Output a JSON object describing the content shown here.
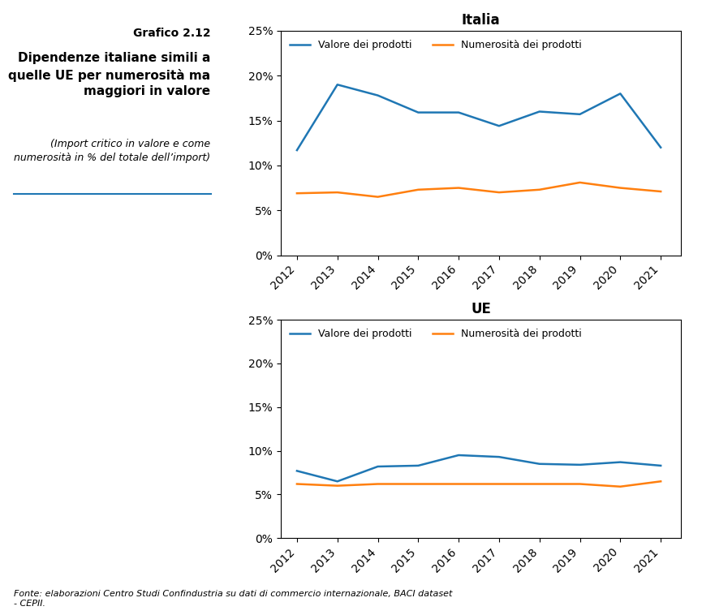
{
  "title": "Grafico 2.12",
  "subtitle": "Dipendenze italiane simili a\nquelle UE per numerosità ma\nmaggiori in valore",
  "annotations": [
    "(Import critico in valore e come\nnumerosità in % del totale dell’import)",
    "Fonte: elaborazioni Centro Studi Confindustria su dati di commercio internazionale, BACI dataset\n- CEPII."
  ],
  "chart_data": [
    {
      "type": "line",
      "title": "Italia",
      "x": [
        2012,
        2013,
        2014,
        2015,
        2016,
        2017,
        2018,
        2019,
        2020,
        2021
      ],
      "xlim": [
        2011.6,
        2021.5
      ],
      "xticks": [
        2012,
        2013,
        2014,
        2015,
        2016,
        2017,
        2018,
        2019,
        2020,
        2021
      ],
      "ylim": [
        0,
        25
      ],
      "yticks": [
        {
          "value": 0,
          "label": "0%"
        },
        {
          "value": 5,
          "label": "5%"
        },
        {
          "value": 10,
          "label": "10%"
        },
        {
          "value": 15,
          "label": "15%"
        },
        {
          "value": 20,
          "label": "20%"
        },
        {
          "value": 25,
          "label": "25%"
        }
      ],
      "grid": false,
      "legend": "upper left",
      "series": [
        {
          "name": "Valore dei prodotti",
          "values": [
            11.7,
            19.0,
            17.8,
            15.9,
            15.9,
            14.4,
            16.0,
            15.7,
            18.0,
            12.0
          ]
        },
        {
          "name": "Numerosità dei prodotti",
          "values": [
            6.9,
            7.0,
            6.5,
            7.3,
            7.5,
            7.0,
            7.3,
            8.1,
            7.5,
            7.1
          ]
        }
      ]
    },
    {
      "type": "line",
      "title": "UE",
      "x": [
        2012,
        2013,
        2014,
        2015,
        2016,
        2017,
        2018,
        2019,
        2020,
        2021
      ],
      "xlim": [
        2011.6,
        2021.5
      ],
      "xticks": [
        2012,
        2013,
        2014,
        2015,
        2016,
        2017,
        2018,
        2019,
        2020,
        2021
      ],
      "ylim": [
        0,
        25
      ],
      "yticks": [
        {
          "value": 0,
          "label": "0%"
        },
        {
          "value": 5,
          "label": "5%"
        },
        {
          "value": 10,
          "label": "10%"
        },
        {
          "value": 15,
          "label": "15%"
        },
        {
          "value": 20,
          "label": "20%"
        },
        {
          "value": 25,
          "label": "25%"
        }
      ],
      "grid": false,
      "legend": "upper left",
      "series": [
        {
          "name": "Valore dei prodotti",
          "values": [
            7.7,
            6.5,
            8.2,
            8.3,
            9.5,
            9.3,
            8.5,
            8.4,
            8.7,
            8.3
          ]
        },
        {
          "name": "Numerosità dei prodotti",
          "values": [
            6.2,
            6.0,
            6.2,
            6.2,
            6.2,
            6.2,
            6.2,
            6.2,
            5.9,
            6.5
          ]
        }
      ]
    }
  ]
}
